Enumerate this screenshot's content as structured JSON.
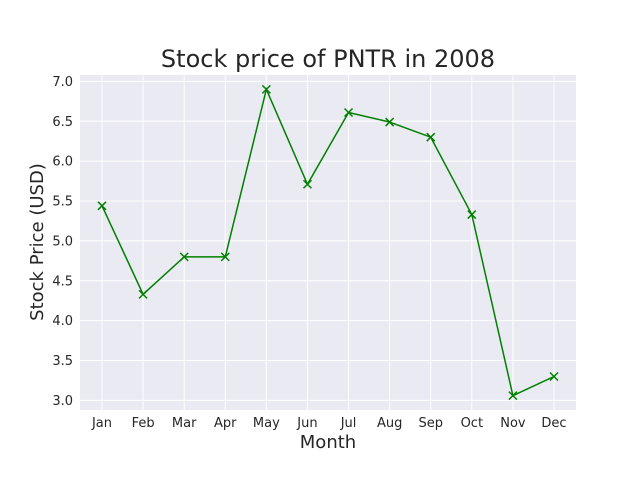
{
  "chart_data": {
    "type": "line",
    "title": "Stock price of PNTR in 2008",
    "xlabel": "Month",
    "ylabel": "Stock Price (USD)",
    "categories": [
      "Jan",
      "Feb",
      "Mar",
      "Apr",
      "May",
      "Jun",
      "Jul",
      "Aug",
      "Sep",
      "Oct",
      "Nov",
      "Dec"
    ],
    "values": [
      5.44,
      4.33,
      4.8,
      4.8,
      6.9,
      5.71,
      6.61,
      6.49,
      6.3,
      5.33,
      3.06,
      3.3
    ],
    "ylim": [
      2.88,
      7.08
    ],
    "yticks": [
      3.0,
      3.5,
      4.0,
      4.5,
      5.0,
      5.5,
      6.0,
      6.5,
      7.0
    ],
    "ytick_labels": [
      "3.0",
      "3.5",
      "4.0",
      "4.5",
      "5.0",
      "5.5",
      "6.0",
      "6.5",
      "7.0"
    ],
    "grid": true,
    "marker": "x",
    "line_color": "#008000",
    "plot_background": "#eaeaf2",
    "grid_color": "#ffffff"
  }
}
